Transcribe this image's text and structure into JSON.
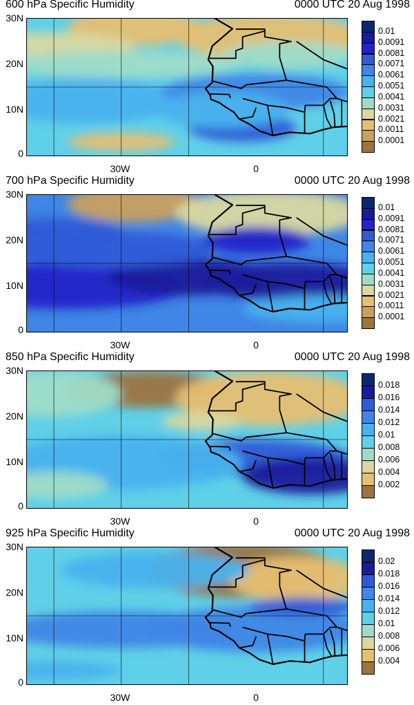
{
  "valid_time": "0000 UTC 20 Aug 1998",
  "y_ticks": [
    "30N",
    "20N",
    "10N",
    "0"
  ],
  "x_ticks": [
    "30W",
    "0"
  ],
  "panels": [
    {
      "title": "600 hPa Specific Humidity",
      "colorbar": {
        "labels": [
          "0.01",
          "0.0091",
          "0.0081",
          "0.0071",
          "0.0061",
          "0.0051",
          "0.0041",
          "0.0031",
          "0.0021",
          "0.0011",
          "0.0001"
        ],
        "colors": [
          "#0b2a6e",
          "#1a1a9c",
          "#2323c8",
          "#2f5bd6",
          "#3f86e6",
          "#49b2ee",
          "#5fd0e8",
          "#9fdcc8",
          "#d9d8a0",
          "#e6bf72",
          "#c9a060",
          "#9b7440"
        ]
      }
    },
    {
      "title": "700 hPa Specific Humidity",
      "colorbar": {
        "labels": [
          "0.01",
          "0.0091",
          "0.0081",
          "0.0071",
          "0.0061",
          "0.0051",
          "0.0041",
          "0.0031",
          "0.0021",
          "0.0011",
          "0.0001"
        ],
        "colors": [
          "#0b2a6e",
          "#1a1a9c",
          "#2323c8",
          "#2f5bd6",
          "#3f86e6",
          "#49b2ee",
          "#5fd0e8",
          "#9fdcc8",
          "#d9d8a0",
          "#e6bf72",
          "#c9a060",
          "#9b7440"
        ]
      }
    },
    {
      "title": "850 hPa Specific Humidity",
      "colorbar": {
        "labels": [
          "0.018",
          "0.016",
          "0.014",
          "0.012",
          "0.01",
          "0.008",
          "0.006",
          "0.004",
          "0.002"
        ],
        "colors": [
          "#0b2a6e",
          "#1a1a9c",
          "#2f5bd6",
          "#3f86e6",
          "#49b2ee",
          "#5fd0e8",
          "#9fdcc8",
          "#d9d8a0",
          "#e6bf72",
          "#9b7440"
        ]
      }
    },
    {
      "title": "925 hPa Specific Humidity",
      "colorbar": {
        "labels": [
          "0.02",
          "0.018",
          "0.016",
          "0.014",
          "0.012",
          "0.01",
          "0.008",
          "0.006",
          "0.004"
        ],
        "colors": [
          "#0b2a6e",
          "#1a1a9c",
          "#2f5bd6",
          "#3f86e6",
          "#49b2ee",
          "#5fd0e8",
          "#9fdcc8",
          "#d9d8a0",
          "#e6bf72",
          "#9b7440"
        ]
      }
    }
  ]
}
